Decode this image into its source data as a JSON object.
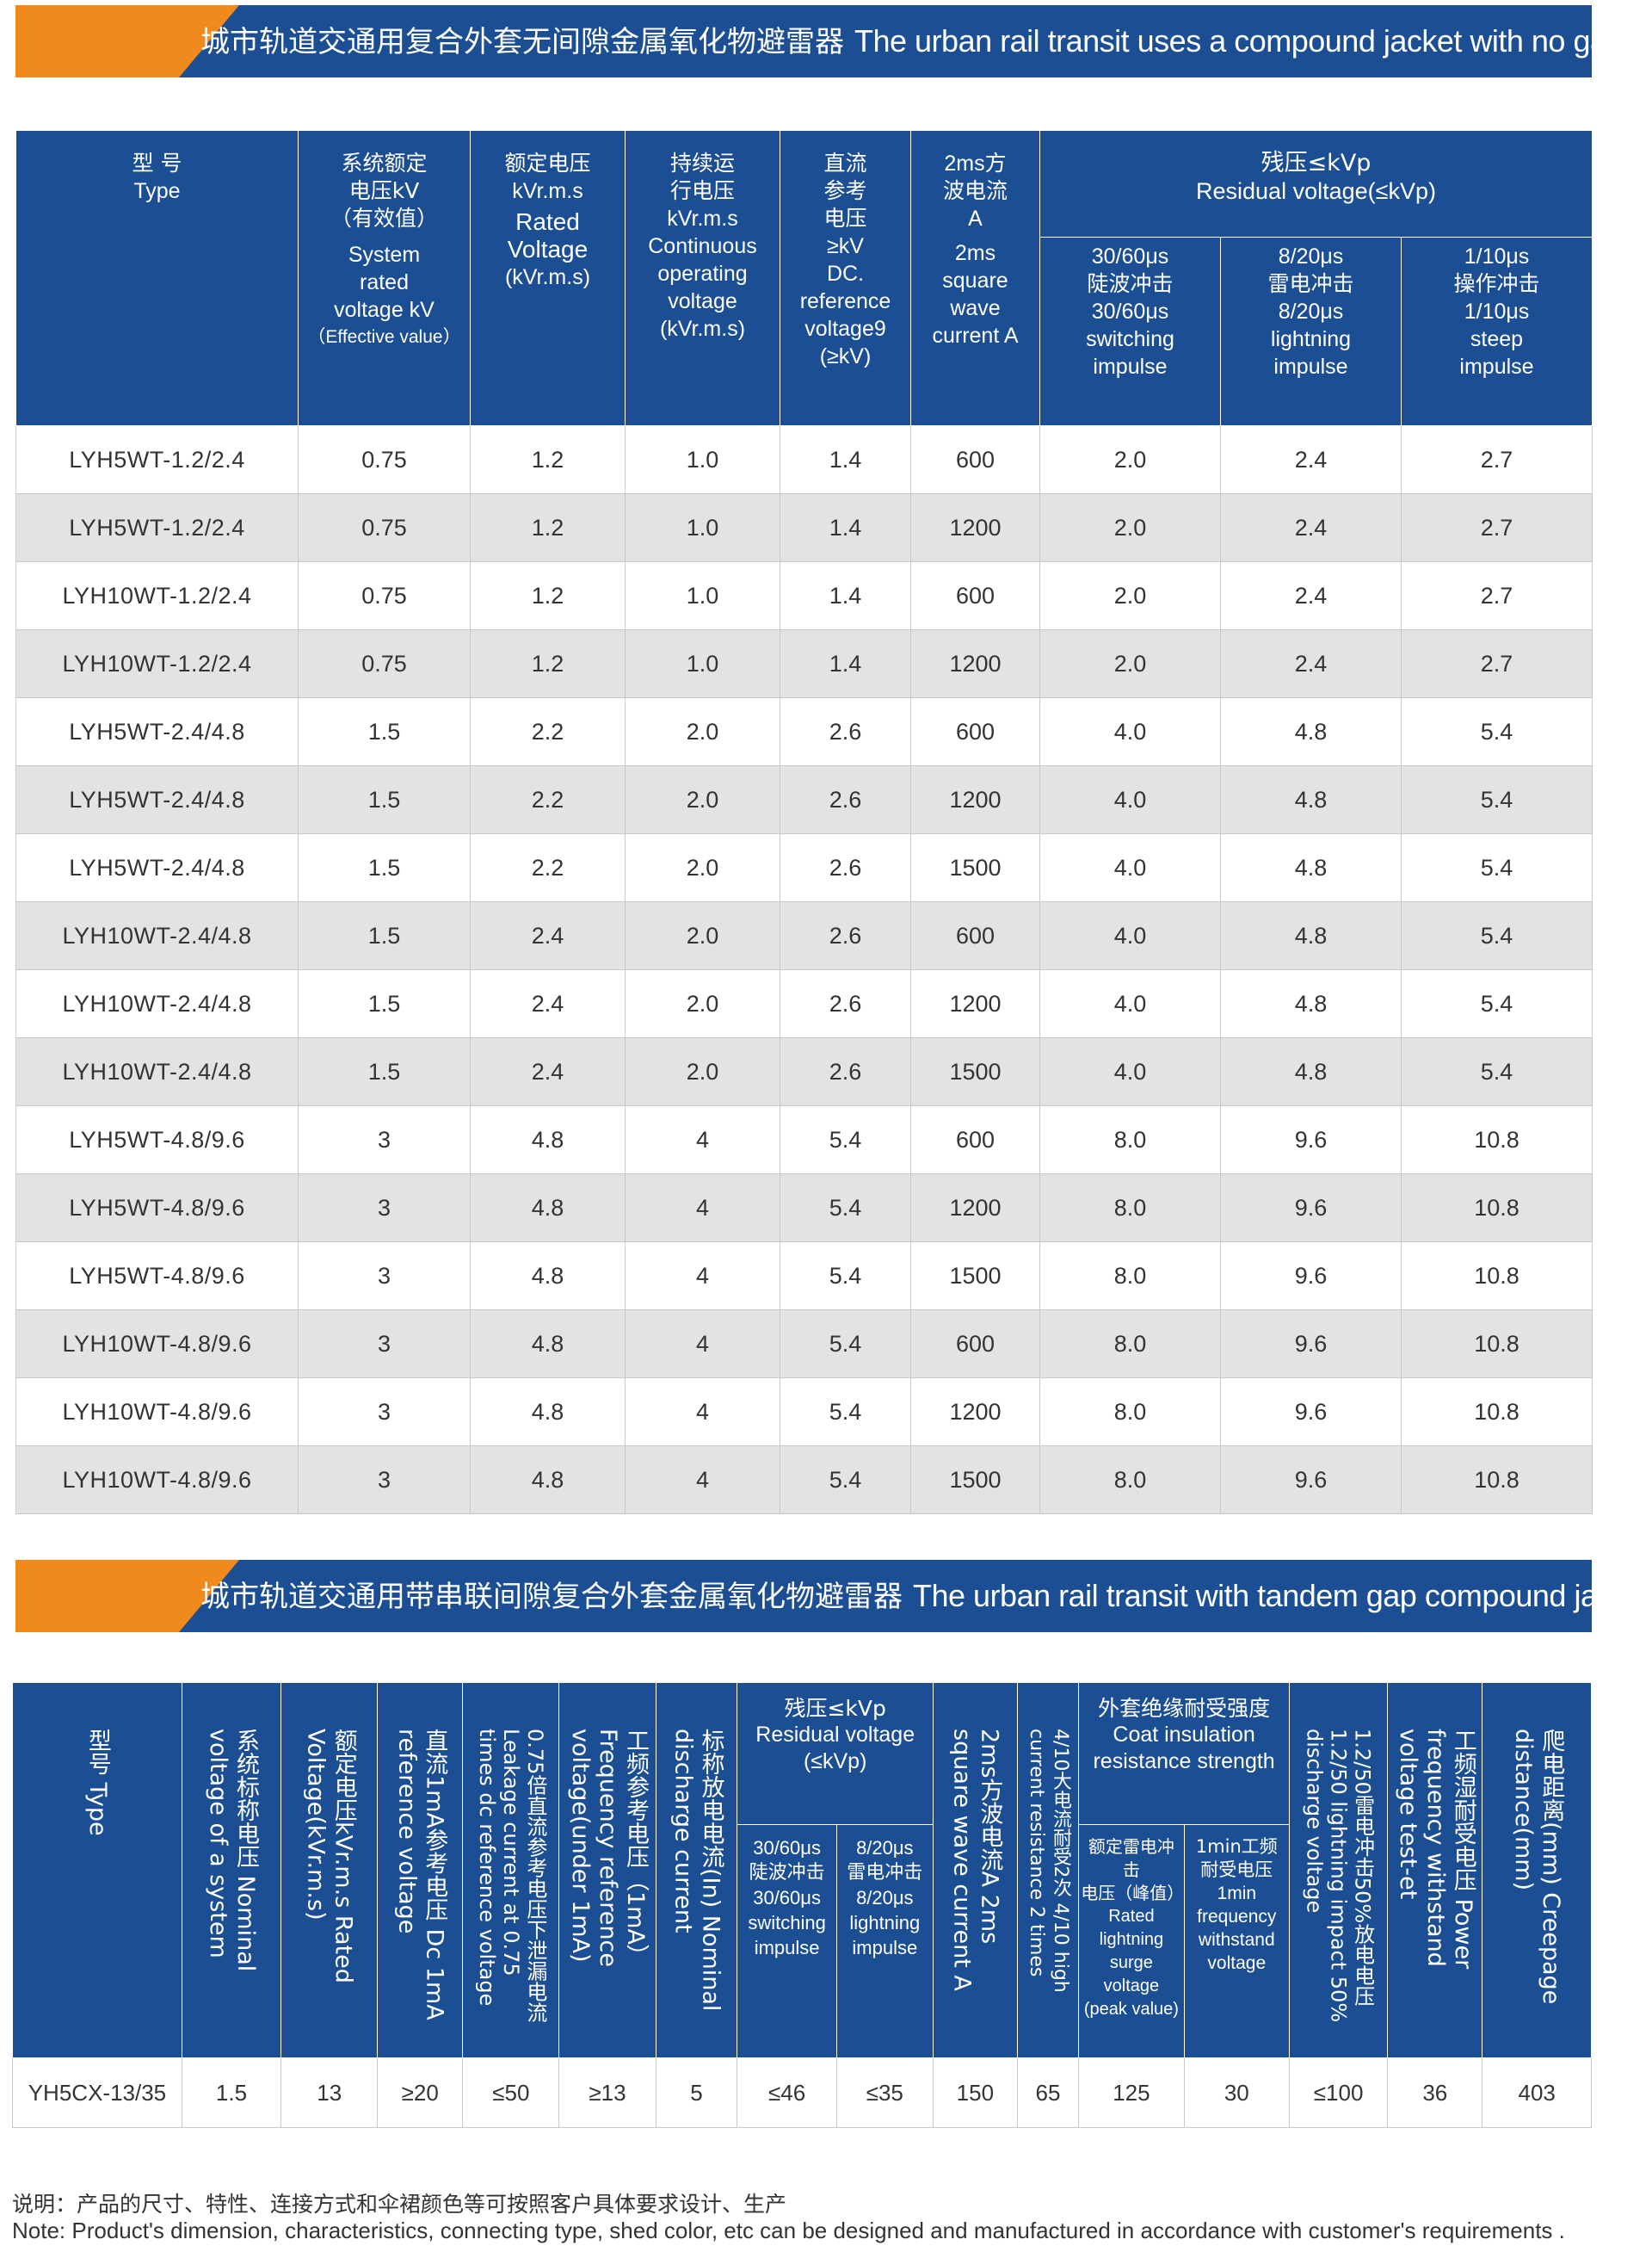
{
  "section1": {
    "title_cn": "城市轨道交通用复合外套无间隙金属氧化物避雷器",
    "title_en": "The urban rail transit uses a compound jacket with no gap metal oxide arrester"
  },
  "table1": {
    "headers": {
      "type": [
        "型 号",
        "Type"
      ],
      "system": [
        "系统额定",
        "电压kV",
        "（有效值）",
        "System",
        "rated",
        "voltage kV"
      ],
      "system_note": "（Effective value）",
      "rated": [
        "额定电压",
        "kVr.m.s",
        "Rated",
        "Voltage",
        "(kVr.m.s)"
      ],
      "continuous": [
        "持续运",
        "行电压",
        "kVr.m.s",
        "Continuous",
        "operating",
        "voltage",
        "(kVr.m.s)"
      ],
      "dc": [
        "直流",
        "参考",
        "电压",
        "≥kV",
        "DC.",
        "reference",
        "voltage9",
        "(≥kV)"
      ],
      "square": [
        "2ms方",
        "波电流",
        "A",
        "2ms",
        "square",
        "wave",
        "current A"
      ],
      "residual": [
        "残压≤kVp",
        "Residual voltage(≤kVp)"
      ],
      "switching": [
        "30/60μs",
        "陡波冲击",
        "30/60μs",
        "switching",
        "impulse"
      ],
      "lightning": [
        "8/20μs",
        "雷电冲击",
        "8/20μs",
        "lightning",
        "impulse"
      ],
      "steep": [
        "1/10μs",
        "操作冲击",
        "1/10μs",
        "steep",
        "impulse"
      ]
    },
    "rows": [
      [
        "LYH5WT-1.2/2.4",
        "0.75",
        "1.2",
        "1.0",
        "1.4",
        "600",
        "2.0",
        "2.4",
        "2.7"
      ],
      [
        "LYH5WT-1.2/2.4",
        "0.75",
        "1.2",
        "1.0",
        "1.4",
        "1200",
        "2.0",
        "2.4",
        "2.7"
      ],
      [
        "LYH10WT-1.2/2.4",
        "0.75",
        "1.2",
        "1.0",
        "1.4",
        "600",
        "2.0",
        "2.4",
        "2.7"
      ],
      [
        "LYH10WT-1.2/2.4",
        "0.75",
        "1.2",
        "1.0",
        "1.4",
        "1200",
        "2.0",
        "2.4",
        "2.7"
      ],
      [
        "LYH5WT-2.4/4.8",
        "1.5",
        "2.2",
        "2.0",
        "2.6",
        "600",
        "4.0",
        "4.8",
        "5.4"
      ],
      [
        "LYH5WT-2.4/4.8",
        "1.5",
        "2.2",
        "2.0",
        "2.6",
        "1200",
        "4.0",
        "4.8",
        "5.4"
      ],
      [
        "LYH5WT-2.4/4.8",
        "1.5",
        "2.2",
        "2.0",
        "2.6",
        "1500",
        "4.0",
        "4.8",
        "5.4"
      ],
      [
        "LYH10WT-2.4/4.8",
        "1.5",
        "2.4",
        "2.0",
        "2.6",
        "600",
        "4.0",
        "4.8",
        "5.4"
      ],
      [
        "LYH10WT-2.4/4.8",
        "1.5",
        "2.4",
        "2.0",
        "2.6",
        "1200",
        "4.0",
        "4.8",
        "5.4"
      ],
      [
        "LYH10WT-2.4/4.8",
        "1.5",
        "2.4",
        "2.0",
        "2.6",
        "1500",
        "4.0",
        "4.8",
        "5.4"
      ],
      [
        "LYH5WT-4.8/9.6",
        "3",
        "4.8",
        "4",
        "5.4",
        "600",
        "8.0",
        "9.6",
        "10.8"
      ],
      [
        "LYH5WT-4.8/9.6",
        "3",
        "4.8",
        "4",
        "5.4",
        "1200",
        "8.0",
        "9.6",
        "10.8"
      ],
      [
        "LYH5WT-4.8/9.6",
        "3",
        "4.8",
        "4",
        "5.4",
        "1500",
        "8.0",
        "9.6",
        "10.8"
      ],
      [
        "LYH10WT-4.8/9.6",
        "3",
        "4.8",
        "4",
        "5.4",
        "600",
        "8.0",
        "9.6",
        "10.8"
      ],
      [
        "LYH10WT-4.8/9.6",
        "3",
        "4.8",
        "4",
        "5.4",
        "1200",
        "8.0",
        "9.6",
        "10.8"
      ],
      [
        "LYH10WT-4.8/9.6",
        "3",
        "4.8",
        "4",
        "5.4",
        "1500",
        "8.0",
        "9.6",
        "10.8"
      ]
    ]
  },
  "section2": {
    "title_cn": "城市轨道交通用带串联间隙复合外套金属氧化物避雷器",
    "title_en": "The urban rail transit with tandem gap compound jacket metal oxide arrester."
  },
  "table2": {
    "headers": {
      "type": "型号 Type",
      "nominal_voltage": "系统标称电压 Nominal voltage of a system",
      "rated": "额定电压kVr.m.s Rated Voltage(kVr.m.s)",
      "dc_ref": "直流1mA参考电压 Dc 1mA reference voltage",
      "leakage": "0.75倍直流参考电压下泄漏电流 Leakage current at 0.75 times dc reference voltage",
      "freq_ref": "工频参考电压（1mA）Frequency reference voltage(under 1mA)",
      "discharge": "标称放电电流(In) Nominal discharge current",
      "residual": [
        "残压≤kVp",
        "Residual voltage",
        "(≤kVp)"
      ],
      "switching": [
        "30/60μs",
        "陡波冲击",
        "30/60μs",
        "switching",
        "impulse"
      ],
      "lightning": [
        "8/20μs",
        "雷电冲击",
        "8/20μs",
        "lightning",
        "impulse"
      ],
      "square": "2ms方波电流A 2ms square wave current A",
      "high_current": "4/10大电流耐受2次 4/10 high current resistance 2 times",
      "insulation": [
        "外套绝缘耐受强度",
        "Coat insulation",
        "resistance strength"
      ],
      "surge": [
        "额定雷电冲击",
        "电压（峰值）",
        "Rated",
        "lightning",
        "surge voltage",
        "(peak value)"
      ],
      "freq_withstand": [
        "1min工频",
        "耐受电压",
        "1min",
        "frequency",
        "withstand",
        "voltage"
      ],
      "impulse_50": "1.2/50雷电冲击50%放电电压 1.2/50 lightning impact 50% discharge voltage",
      "wet": "工频湿耐受电压 Power frequency withstand voltage test-et",
      "creepage": "爬电距离(mm) Creepage distance(mm)"
    },
    "row": [
      "YH5CX-13/35",
      "1.5",
      "13",
      "≥20",
      "≤50",
      "≥13",
      "5",
      "≤46",
      "≤35",
      "150",
      "65",
      "125",
      "30",
      "≤100",
      "36",
      "403"
    ]
  },
  "notes": {
    "cn": "说明：产品的尺寸、特性、连接方式和伞裙颜色等可按照客户具体要求设计、生产",
    "en": "Note: Product's dimension, characteristics, connecting type, shed color, etc can be designed and manufactured in accordance with customer's requirements ."
  }
}
